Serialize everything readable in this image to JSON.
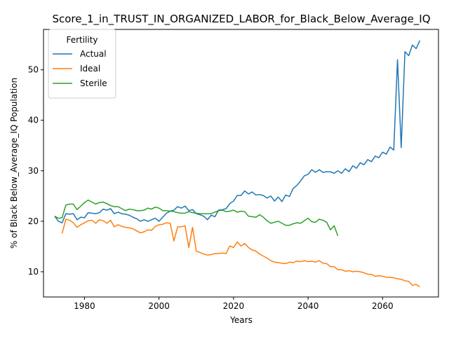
{
  "chart_data": {
    "type": "line",
    "title": "Score_1_in_TRUST_IN_ORGANIZED_LABOR_for_Black_Below_Average_IQ",
    "xlabel": "Years",
    "ylabel": "% of Black Below_Average_IQ Population",
    "xlim": [
      1969,
      2075
    ],
    "ylim": [
      5,
      58
    ],
    "xticks": [
      "1980",
      "2000",
      "2020",
      "2040",
      "2060"
    ],
    "yticks": [
      "10",
      "20",
      "30",
      "40",
      "50"
    ],
    "grid": false,
    "legend": {
      "title": "Fertility",
      "placement": "top-left"
    },
    "series": [
      {
        "name": "Actual",
        "color": "#1f77b4",
        "x": [
          1972,
          1973,
          1974,
          1975,
          1976,
          1977,
          1978,
          1979,
          1980,
          1981,
          1982,
          1983,
          1984,
          1985,
          1986,
          1987,
          1988,
          1989,
          1990,
          1991,
          1992,
          1993,
          1994,
          1995,
          1996,
          1997,
          1998,
          1999,
          2000,
          2001,
          2002,
          2003,
          2004,
          2005,
          2006,
          2007,
          2008,
          2009,
          2010,
          2011,
          2012,
          2013,
          2014,
          2015,
          2016,
          2017,
          2018,
          2019,
          2020,
          2021,
          2022,
          2023,
          2024,
          2025,
          2026,
          2027,
          2028,
          2029,
          2030,
          2031,
          2032,
          2033,
          2034,
          2035,
          2036,
          2037,
          2038,
          2039,
          2040,
          2041,
          2042,
          2043,
          2044,
          2045,
          2046,
          2047,
          2048,
          2049,
          2050,
          2051,
          2052,
          2053,
          2054,
          2055,
          2056,
          2057,
          2058,
          2059,
          2060,
          2061,
          2062,
          2063,
          2064,
          2065,
          2066,
          2067,
          2068,
          2069,
          2070
        ],
        "values": [
          21.0,
          20.0,
          19.7,
          21.5,
          21.4,
          21.5,
          20.3,
          20.8,
          20.7,
          21.7,
          21.6,
          21.5,
          21.7,
          22.4,
          22.2,
          22.5,
          21.5,
          21.8,
          21.5,
          21.4,
          21.2,
          20.8,
          20.5,
          20.0,
          20.3,
          20.0,
          20.3,
          20.6,
          20.0,
          20.8,
          21.6,
          22.0,
          22.2,
          22.9,
          22.6,
          23.0,
          22.1,
          22.3,
          21.5,
          21.3,
          21.0,
          20.3,
          21.2,
          20.9,
          22.2,
          22.3,
          22.5,
          23.5,
          24.0,
          25.1,
          25.1,
          26.0,
          25.4,
          25.8,
          25.2,
          25.3,
          25.1,
          24.6,
          25.0,
          24.0,
          24.8,
          23.9,
          25.2,
          24.9,
          26.5,
          27.1,
          28.0,
          29.0,
          29.3,
          30.2,
          29.7,
          30.2,
          29.7,
          29.8,
          29.8,
          29.5,
          30.0,
          29.5,
          30.4,
          29.8,
          31.0,
          30.5,
          31.6,
          31.2,
          32.2,
          31.8,
          32.9,
          32.6,
          33.7,
          33.3,
          34.7,
          34.1,
          52.0,
          34.6,
          53.6,
          52.8,
          54.9,
          54.2,
          55.8
        ]
      },
      {
        "name": "Ideal",
        "color": "#ff7f0e",
        "x": [
          1974,
          1975,
          1976,
          1977,
          1978,
          1979,
          1980,
          1981,
          1982,
          1983,
          1984,
          1985,
          1986,
          1987,
          1988,
          1989,
          1990,
          1991,
          1992,
          1993,
          1994,
          1995,
          1996,
          1997,
          1998,
          1999,
          2000,
          2001,
          2002,
          2003,
          2004,
          2005,
          2006,
          2007,
          2008,
          2009,
          2010,
          2011,
          2012,
          2013,
          2014,
          2015,
          2016,
          2017,
          2018,
          2019,
          2020,
          2021,
          2022,
          2023,
          2024,
          2025,
          2026,
          2027,
          2028,
          2029,
          2030,
          2031,
          2032,
          2033,
          2034,
          2035,
          2036,
          2037,
          2038,
          2039,
          2040,
          2041,
          2042,
          2043,
          2044,
          2045,
          2046,
          2047,
          2048,
          2049,
          2050,
          2051,
          2052,
          2053,
          2054,
          2055,
          2056,
          2057,
          2058,
          2059,
          2060,
          2061,
          2062,
          2063,
          2064,
          2065,
          2066,
          2067,
          2068,
          2069,
          2070
        ],
        "values": [
          17.6,
          20.4,
          20.2,
          19.7,
          18.8,
          19.3,
          19.7,
          20.1,
          20.2,
          19.6,
          20.3,
          20.1,
          19.6,
          20.2,
          18.9,
          19.3,
          19.0,
          18.8,
          18.7,
          18.5,
          18.1,
          17.7,
          17.9,
          18.3,
          18.2,
          19.0,
          19.3,
          19.4,
          19.7,
          19.6,
          16.1,
          18.9,
          18.9,
          19.1,
          14.8,
          18.8,
          14.1,
          13.8,
          13.5,
          13.3,
          13.4,
          13.6,
          13.6,
          13.7,
          13.6,
          15.1,
          14.8,
          15.9,
          15.1,
          15.6,
          14.8,
          14.3,
          14.1,
          13.5,
          13.1,
          12.7,
          12.2,
          11.9,
          11.8,
          11.7,
          11.6,
          11.9,
          11.8,
          12.1,
          12.0,
          12.2,
          12.0,
          12.1,
          11.9,
          12.2,
          11.7,
          11.6,
          11.0,
          11.0,
          10.4,
          10.4,
          10.1,
          10.2,
          10.0,
          10.1,
          10.0,
          9.8,
          9.5,
          9.5,
          9.1,
          9.2,
          9.1,
          8.9,
          8.9,
          8.8,
          8.6,
          8.5,
          8.2,
          8.1,
          7.3,
          7.5,
          7.0
        ]
      },
      {
        "name": "Sterile",
        "color": "#2ca02c",
        "x": [
          1972,
          1973,
          1974,
          1975,
          1976,
          1977,
          1978,
          1979,
          1980,
          1981,
          1982,
          1983,
          1984,
          1985,
          1986,
          1987,
          1988,
          1989,
          1990,
          1991,
          1992,
          1993,
          1994,
          1995,
          1996,
          1997,
          1998,
          1999,
          2000,
          2001,
          2002,
          2003,
          2004,
          2005,
          2006,
          2007,
          2008,
          2009,
          2010,
          2011,
          2012,
          2013,
          2014,
          2015,
          2016,
          2017,
          2018,
          2019,
          2020,
          2021,
          2022,
          2023,
          2024,
          2025,
          2026,
          2027,
          2028,
          2029,
          2030,
          2031,
          2032,
          2033,
          2034,
          2035,
          2036,
          2037,
          2038,
          2039,
          2040,
          2041,
          2042,
          2043,
          2044,
          2045,
          2046,
          2047,
          2048
        ],
        "values": [
          21.0,
          20.6,
          20.7,
          23.2,
          23.4,
          23.4,
          22.3,
          23.0,
          23.7,
          24.2,
          23.8,
          23.4,
          23.7,
          23.8,
          23.5,
          23.1,
          22.9,
          22.9,
          22.5,
          22.1,
          22.4,
          22.3,
          22.1,
          22.1,
          22.2,
          22.6,
          22.4,
          22.8,
          22.6,
          22.1,
          22.1,
          22.0,
          21.9,
          21.7,
          21.6,
          21.6,
          21.9,
          21.7,
          21.6,
          21.5,
          21.5,
          21.5,
          21.5,
          21.8,
          22.1,
          22.2,
          21.9,
          22.0,
          22.2,
          21.8,
          22.0,
          21.9,
          21.0,
          20.9,
          20.8,
          21.3,
          20.8,
          20.1,
          19.6,
          19.8,
          20.0,
          19.6,
          19.2,
          19.2,
          19.5,
          19.7,
          19.6,
          20.1,
          20.6,
          19.9,
          19.8,
          20.4,
          20.2,
          19.8,
          18.3,
          19.1,
          17.1
        ]
      }
    ]
  }
}
